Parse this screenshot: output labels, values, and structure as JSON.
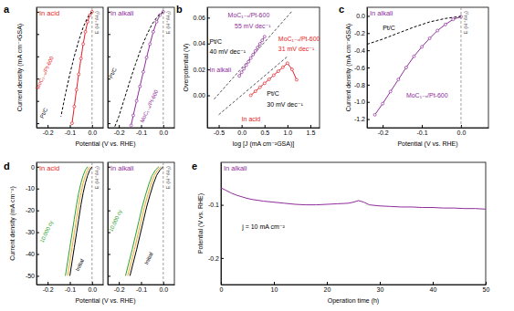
{
  "chart_data": [
    {
      "type": "line",
      "panel": "a",
      "title": "In acid",
      "color": "#e41e26",
      "x_label": "Potential (V vs. RHE)",
      "y_label": "Current density (mA cm⁻²GSA)",
      "xlim": [
        -0.25,
        0.05
      ],
      "ylim": [
        -52,
        2
      ],
      "xticks": [
        -0.2,
        -0.1,
        {
          "value": 0,
          "label": "0.0"
        }
      ],
      "yticks": [
        0,
        -10,
        -20,
        -30,
        -40,
        -50
      ],
      "tick_labels": "x",
      "reference_line": {
        "x": 0,
        "label": "E (H⁺/H₂)"
      },
      "series": [
        {
          "color": "#e41e26",
          "marker": "circle",
          "line_style": "solid",
          "x": [
            0.0,
            -0.01,
            -0.02,
            -0.03,
            -0.04,
            -0.05,
            -0.06,
            -0.07,
            -0.08,
            -0.09
          ],
          "values": [
            0,
            -1.5,
            -4.5,
            -9,
            -14.5,
            -21,
            -28,
            -35,
            -42.5,
            -50
          ]
        },
        {
          "color": "#000000",
          "line_style": "dashed",
          "x": [
            0.0,
            -0.02,
            -0.04,
            -0.06,
            -0.08,
            -0.1,
            -0.12,
            -0.14
          ],
          "values": [
            0,
            -2.5,
            -7,
            -13,
            -20,
            -28,
            -37,
            -47
          ]
        }
      ],
      "annotations": [
        {
          "text": "MoC₁₋ₓ/Pt-600",
          "x": -0.24,
          "y": -35,
          "color": "#e41e26"
        },
        {
          "text": "Pt/C",
          "x": -0.22,
          "y": -48,
          "color": "#000000"
        }
      ]
    },
    {
      "type": "line",
      "title": "In alkali",
      "color": "#8e2c9a",
      "xlim": [
        -0.25,
        0.05
      ],
      "ylim": [
        -52,
        2
      ],
      "xticks": [
        -0.2,
        -0.1,
        {
          "value": 0,
          "label": "0.0"
        }
      ],
      "yticks": [
        0,
        -10,
        -20,
        -30,
        -40,
        -50
      ],
      "tick_labels": "x",
      "reference_line": {
        "x": 0,
        "label": "E (H⁺/H₂)"
      },
      "series": [
        {
          "color": "#8e2c9a",
          "marker": "circle",
          "line_style": "solid",
          "x": [
            0.0,
            -0.015,
            -0.03,
            -0.045,
            -0.06,
            -0.075,
            -0.09,
            -0.105,
            -0.12,
            -0.135,
            -0.145
          ],
          "values": [
            0,
            -1.5,
            -4.5,
            -9,
            -14.5,
            -20.5,
            -27,
            -33.5,
            -40,
            -46.5,
            -51
          ]
        },
        {
          "color": "#000000",
          "line_style": "dashed",
          "x": [
            0.0,
            -0.025,
            -0.05,
            -0.075,
            -0.1,
            -0.125,
            -0.15,
            -0.175,
            -0.2,
            -0.22
          ],
          "values": [
            0,
            -2,
            -5.5,
            -10.5,
            -16.5,
            -23.5,
            -31,
            -39,
            -47,
            -52
          ]
        }
      ],
      "annotations": [
        {
          "text": "MoC₁₋ₓ/Pt-600",
          "x": -0.09,
          "y": -50,
          "color": "#8e2c9a"
        },
        {
          "text": "Pt/C",
          "x": -0.23,
          "y": -30,
          "color": "#000000"
        }
      ]
    },
    {
      "type": "line",
      "panel": "b",
      "x_label": "log [J (mA cm⁻²GSA)]",
      "y_label": "Overpotential (V)",
      "xlim": [
        -0.75,
        1.7
      ],
      "ylim": [
        -0.025,
        0.068
      ],
      "xticks": [
        -0.5,
        {
          "value": 0,
          "label": "0.0"
        },
        0.5,
        {
          "value": 1,
          "label": "1.0"
        },
        1.5
      ],
      "yticks": [
        {
          "value": 0,
          "label": "0.00"
        },
        {
          "value": 0.02,
          "label": "0.02"
        },
        {
          "value": 0.04,
          "label": "0.04"
        },
        {
          "value": 0.06,
          "label": "0.06"
        }
      ],
      "series": [
        {
          "color": "#555555",
          "line_style": "dashed",
          "x": [
            -0.6,
            1.1
          ],
          "values": [
            -0.003,
            0.065
          ]
        },
        {
          "color": "#8e2c9a",
          "marker": "circle",
          "line_style": "solid",
          "x": [
            -0.05,
            0.0,
            0.05,
            0.1,
            0.15,
            0.2,
            0.25,
            0.3,
            0.35,
            0.4,
            0.45,
            0.5
          ],
          "values": [
            0.015,
            0.0178,
            0.0205,
            0.0233,
            0.026,
            0.0288,
            0.0315,
            0.0343,
            0.037,
            0.0398,
            0.0425,
            0.0453
          ]
        },
        {
          "color": "#555555",
          "line_style": "dashed",
          "x": [
            -0.5,
            1.0
          ],
          "values": [
            -0.015,
            0.03
          ]
        },
        {
          "color": "#e41e26",
          "marker": "circle",
          "line_style": "solid",
          "x": [
            0.2,
            0.3,
            0.4,
            0.5,
            0.6,
            0.7,
            0.8,
            0.9,
            1.0,
            1.1,
            1.2
          ],
          "values": [
            0,
            0.0031,
            0.0062,
            0.0093,
            0.0124,
            0.0155,
            0.0186,
            0.0217,
            0.0248,
            0.02,
            0.012
          ]
        }
      ],
      "annotations": [
        {
          "text": "MoC₁₋ₓ/Pt-600",
          "x": -0.3,
          "y": 0.06,
          "color": "#8e2c9a"
        },
        {
          "text": "55 mV dec⁻¹",
          "x": -0.15,
          "y": 0.052,
          "color": "#8e2c9a"
        },
        {
          "text": "Pt/C",
          "x": -0.7,
          "y": 0.04,
          "color": "#000000"
        },
        {
          "text": "40 mV dec⁻¹",
          "x": -0.7,
          "y": 0.032,
          "color": "#000000"
        },
        {
          "text": "In alkali",
          "x": -0.7,
          "y": 0.018,
          "color": "#8e2c9a"
        },
        {
          "text": "In acid",
          "x": 0.0,
          "y": -0.02,
          "color": "#e41e26"
        },
        {
          "text": "Pt/C",
          "x": 0.55,
          "y": 0.0,
          "color": "#000000"
        },
        {
          "text": "30 mV dec⁻¹",
          "x": 0.55,
          "y": -0.009,
          "color": "#000000"
        },
        {
          "text": "MoC₁₋ₓ/Pt-600",
          "x": 0.8,
          "y": 0.042,
          "color": "#e41e26"
        },
        {
          "text": "31 mV dec⁻¹",
          "x": 0.8,
          "y": 0.034,
          "color": "#e41e26"
        }
      ]
    },
    {
      "type": "line",
      "panel": "c",
      "title": "In alkali",
      "color": "#8e2c9a",
      "x_label": "Potential (V vs. RHE)",
      "y_label": "Current density (mA cm⁻²GSA)",
      "xlim": [
        -0.24,
        0.07
      ],
      "ylim": [
        -1.3,
        0.1
      ],
      "xticks": [
        -0.2,
        -0.1,
        {
          "value": 0,
          "label": "0.0"
        }
      ],
      "yticks": [
        {
          "value": 0,
          "label": "0.0"
        },
        -0.2,
        -0.4,
        -0.6,
        -0.8,
        {
          "value": -1,
          "label": "-1.0"
        },
        -1.2
      ],
      "reference_line": {
        "x": 0,
        "label": "E (H⁺/H₂)"
      },
      "series": [
        {
          "color": "#8e2c9a",
          "marker": "circle",
          "line_style": "solid",
          "x": [
            -0.22,
            -0.2,
            -0.18,
            -0.16,
            -0.14,
            -0.12,
            -0.1,
            -0.08,
            -0.06,
            -0.04,
            -0.02,
            0.0
          ],
          "values": [
            -1.15,
            -1.02,
            -0.88,
            -0.74,
            -0.6,
            -0.47,
            -0.36,
            -0.26,
            -0.17,
            -0.1,
            -0.04,
            -0.01
          ]
        },
        {
          "color": "#000000",
          "line_style": "dashed",
          "x": [
            -0.24,
            -0.2,
            -0.16,
            -0.12,
            -0.08,
            -0.04,
            0.0
          ],
          "values": [
            -0.33,
            -0.27,
            -0.2,
            -0.13,
            -0.07,
            -0.03,
            -0.005
          ]
        }
      ],
      "annotations": [
        {
          "text": "Pt/C",
          "x": -0.2,
          "y": -0.17,
          "color": "#000000"
        },
        {
          "text": "MoC₁₋ₓ/Pt-600",
          "x": -0.14,
          "y": -0.95,
          "color": "#8e2c9a"
        }
      ]
    },
    {
      "type": "line",
      "panel": "d",
      "title": "In acid",
      "color": "#e41e26",
      "x_label": "Potential (V vs. RHE)",
      "y_label": "Current density (mA cm⁻²)",
      "xlim": [
        -0.25,
        0.05
      ],
      "ylim": [
        -54,
        2
      ],
      "xticks": [
        -0.2,
        -0.1,
        {
          "value": 0,
          "label": "0.0"
        }
      ],
      "yticks": [
        0,
        -10,
        -20,
        -30,
        -40,
        -50
      ],
      "reference_line": {
        "x": 0,
        "label": "E (H⁺/H₂)"
      },
      "series": [
        {
          "color": "#000000",
          "line_style": "solid",
          "x": [
            0.0,
            -0.01,
            -0.02,
            -0.03,
            -0.04,
            -0.05,
            -0.06,
            -0.07,
            -0.08,
            -0.09,
            -0.1
          ],
          "values": [
            0,
            -1.5,
            -4,
            -7.5,
            -12,
            -17.5,
            -24,
            -30.5,
            -37,
            -43.5,
            -50
          ]
        },
        {
          "color": "#f5a623",
          "line_style": "solid",
          "x": [
            -0.01,
            -0.02,
            -0.03,
            -0.04,
            -0.05,
            -0.06,
            -0.07,
            -0.08,
            -0.09,
            -0.1,
            -0.11
          ],
          "values": [
            0,
            -1.5,
            -4,
            -7.5,
            -12,
            -17.5,
            -24,
            -30.5,
            -37,
            -43.5,
            -50
          ]
        },
        {
          "color": "#2ca02c",
          "line_style": "solid",
          "x": [
            -0.02,
            -0.03,
            -0.04,
            -0.05,
            -0.06,
            -0.07,
            -0.08,
            -0.09,
            -0.1,
            -0.11,
            -0.12
          ],
          "values": [
            0,
            -1.5,
            -4,
            -7.5,
            -12,
            -17.5,
            -24,
            -30.5,
            -37,
            -43.5,
            -50
          ]
        }
      ],
      "annotations": [
        {
          "text": "10,000 cy",
          "x": -0.22,
          "y": -35,
          "color": "#2ca02c"
        },
        {
          "text": "Initial",
          "x": -0.06,
          "y": -48,
          "color": "#000000"
        }
      ]
    },
    {
      "type": "line",
      "title": "In alkali",
      "color": "#8e2c9a",
      "xlim": [
        -0.25,
        0.05
      ],
      "ylim": [
        -54,
        2
      ],
      "xticks": [
        -0.2,
        -0.1,
        {
          "value": 0,
          "label": "0.0"
        }
      ],
      "yticks": [
        0,
        -10,
        -20,
        -30,
        -40,
        -50
      ],
      "tick_labels": "x",
      "reference_line": {
        "x": 0,
        "label": "E (H⁺/H₂)"
      },
      "series": [
        {
          "color": "#000000",
          "line_style": "solid",
          "x": [
            0.0,
            -0.015,
            -0.03,
            -0.045,
            -0.06,
            -0.075,
            -0.09,
            -0.105,
            -0.12,
            -0.135,
            -0.15
          ],
          "values": [
            0,
            -1.5,
            -4,
            -8,
            -13,
            -18.5,
            -25,
            -31.5,
            -38,
            -44,
            -50
          ]
        },
        {
          "color": "#f5a623",
          "line_style": "solid",
          "x": [
            -0.01,
            -0.025,
            -0.04,
            -0.055,
            -0.07,
            -0.085,
            -0.1,
            -0.115,
            -0.13,
            -0.145,
            -0.16
          ],
          "values": [
            0,
            -1.5,
            -4,
            -8,
            -13,
            -18.5,
            -25,
            -31.5,
            -38,
            -44,
            -50
          ]
        },
        {
          "color": "#2ca02c",
          "line_style": "solid",
          "x": [
            -0.02,
            -0.035,
            -0.05,
            -0.065,
            -0.08,
            -0.095,
            -0.11,
            -0.125,
            -0.14,
            -0.155,
            -0.17
          ],
          "values": [
            0,
            -1.5,
            -4,
            -8,
            -13,
            -18.5,
            -25,
            -31.5,
            -38,
            -44,
            -50
          ]
        }
      ],
      "annotations": [
        {
          "text": "10,000 cy",
          "x": -0.23,
          "y": -30,
          "color": "#2ca02c"
        },
        {
          "text": "Initial",
          "x": -0.07,
          "y": -45,
          "color": "#000000"
        }
      ]
    },
    {
      "type": "line",
      "panel": "e",
      "title": "In alkali",
      "color": "#8e2c9a",
      "x_label": "Operation time (h)",
      "y_label": "Potential (V vs. RHE)",
      "xlim": [
        0,
        50
      ],
      "ylim": [
        -0.25,
        -0.02
      ],
      "xticks": [
        0,
        10,
        20,
        30,
        40,
        50
      ],
      "yticks": [
        -0.1,
        -0.2
      ],
      "series": [
        {
          "color": "#8e2c9a",
          "line_style": "solid",
          "x": [
            0,
            1,
            2,
            3,
            4,
            5,
            6,
            8,
            10,
            12,
            14,
            16,
            18,
            20,
            22,
            24,
            25,
            26,
            27,
            28,
            30,
            32,
            34,
            36,
            38,
            40,
            42,
            44,
            46,
            48,
            50
          ],
          "values": [
            -0.068,
            -0.073,
            -0.078,
            -0.082,
            -0.085,
            -0.088,
            -0.09,
            -0.093,
            -0.095,
            -0.097,
            -0.099,
            -0.1,
            -0.1,
            -0.099,
            -0.098,
            -0.097,
            -0.095,
            -0.092,
            -0.095,
            -0.1,
            -0.102,
            -0.103,
            -0.104,
            -0.104,
            -0.105,
            -0.105,
            -0.106,
            -0.106,
            -0.107,
            -0.107,
            -0.108
          ]
        }
      ],
      "annotations": [
        {
          "text": "j = 10 mA cm⁻²",
          "x": 4,
          "y": -0.145,
          "color": "#000000"
        }
      ]
    }
  ]
}
